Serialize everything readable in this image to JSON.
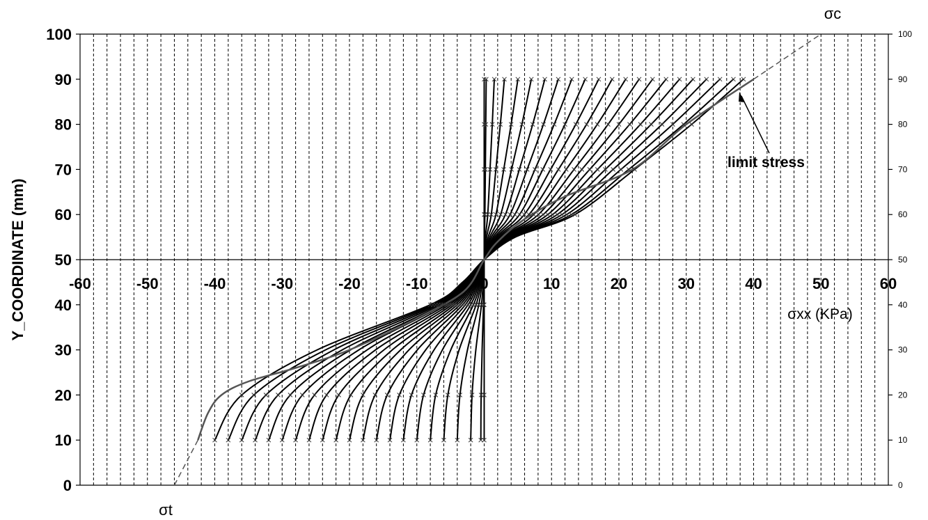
{
  "chart_data": {
    "type": "line",
    "ylabel": "Y_COORDINATE (mm)",
    "xlabel": "σxx (KPa)",
    "xlim": [
      -60,
      60
    ],
    "ylim": [
      0,
      100
    ],
    "x_ticks": [
      "-60",
      "-50",
      "-40",
      "-30",
      "-20",
      "-10",
      "0",
      "10",
      "20",
      "30",
      "40",
      "50",
      "60"
    ],
    "y_ticks": [
      "0",
      "10",
      "20",
      "30",
      "40",
      "50",
      "60",
      "70",
      "80",
      "90",
      "100"
    ],
    "y_ticks_right": [
      "0",
      "10",
      "20",
      "30",
      "40",
      "50",
      "60",
      "70",
      "80",
      "90",
      "100"
    ],
    "grid": "vertical dashed every 2 units",
    "y_points": [
      10,
      20,
      30,
      40,
      45,
      50,
      55,
      60,
      70,
      80,
      90
    ],
    "family_shape": [
      1.0,
      0.9,
      0.62,
      0.2,
      0.08,
      0.0,
      0.12,
      0.35,
      0.58,
      0.8,
      1.0
    ],
    "family_series_bottom_values": [
      -40.0,
      -38.0,
      -36.0,
      -34.0,
      -32.0,
      -30.0,
      -28.0,
      -26.0,
      -24.0,
      -22.0,
      -20.0,
      -18.0,
      -16.0,
      -14.0,
      -12.0,
      -10.0,
      -8.0,
      -6.0,
      -4.0,
      -2.0,
      -0.5,
      0.0
    ],
    "family_series_top_values": [
      38.5,
      37.0,
      35.0,
      33.0,
      31.0,
      29.0,
      27.0,
      25.0,
      23.0,
      21.0,
      19.0,
      17.0,
      15.0,
      13.0,
      11.0,
      9.0,
      7.0,
      5.0,
      3.0,
      1.5,
      0.3,
      0.0
    ],
    "limit_stress": {
      "name": "limit stress",
      "x": [
        -42.5,
        -41,
        -39,
        -35,
        -28,
        -20,
        -10,
        -3,
        0,
        2,
        6,
        12,
        22,
        30,
        40
      ],
      "y": [
        10,
        16,
        20,
        23,
        26,
        30,
        37,
        43,
        50,
        54,
        59,
        64,
        70,
        80,
        90
      ]
    },
    "extension_lines": {
      "compression": {
        "x": [
          40,
          50
        ],
        "y": [
          90,
          100
        ]
      },
      "tension": {
        "x": [
          -42.5,
          -46
        ],
        "y": [
          10,
          0
        ]
      }
    },
    "annotations": {
      "sigma_c": "σc",
      "sigma_t": "σt",
      "limit_stress": "limit stress"
    }
  },
  "colors": {
    "curve": "#000000",
    "limit": "#555555",
    "grid": "#000000"
  }
}
